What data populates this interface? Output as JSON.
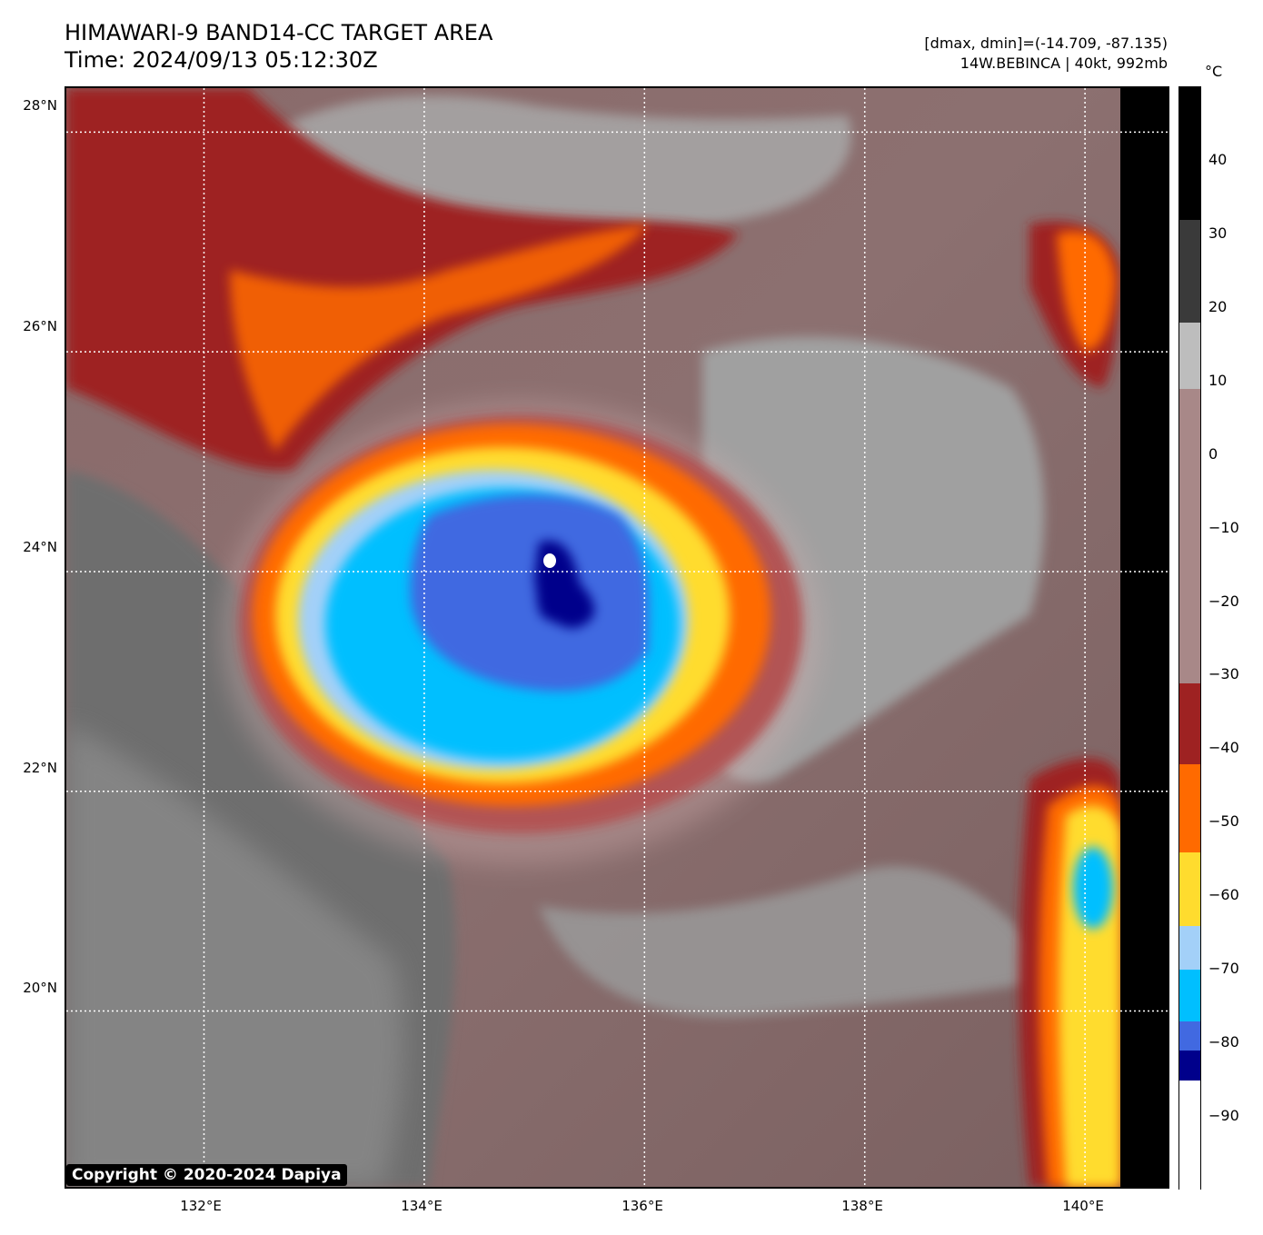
{
  "header": {
    "title_line1": "HIMAWARI-9 BAND14-CC TARGET AREA",
    "title_line2": "Time: 2024/09/13 05:12:30Z",
    "dmax_dmin": "[dmax, dmin]=(-14.709, -87.135)",
    "storm": "14W.BEBINCA | 40kt, 992mb"
  },
  "map": {
    "lat_labels": [
      "28°N",
      "26°N",
      "24°N",
      "22°N",
      "20°N"
    ],
    "lon_labels": [
      "132°E",
      "134°E",
      "136°E",
      "138°E",
      "140°E"
    ],
    "lat_values": [
      28,
      26,
      24,
      22,
      20
    ],
    "lon_values": [
      132,
      134,
      136,
      138,
      140
    ],
    "lat_range": [
      18.4,
      28.4
    ],
    "lon_range": [
      130.75,
      140.75
    ],
    "data_edge_lon": 140.25,
    "storm_center": {
      "lat": 23.7,
      "lon": 135.3
    },
    "grid": true
  },
  "colorbar": {
    "unit": "°C",
    "labels": [
      "40",
      "30",
      "20",
      "10",
      "0",
      "−10",
      "−20",
      "−30",
      "−40",
      "−50",
      "−60",
      "−70",
      "−80",
      "−90"
    ],
    "values": [
      40,
      30,
      20,
      10,
      0,
      -10,
      -20,
      -30,
      -40,
      -50,
      -60,
      -70,
      -80,
      -90
    ],
    "range": [
      -100,
      50
    ],
    "segments": [
      {
        "from": 50,
        "to": 32,
        "color": "#000000"
      },
      {
        "from": 32,
        "to": 18,
        "color": "#3a3a3a"
      },
      {
        "from": 18,
        "to": 9,
        "color": "#bdbdbd"
      },
      {
        "from": 9,
        "to": -31,
        "color": "#a88888"
      },
      {
        "from": -31,
        "to": -42,
        "color": "#9e2222"
      },
      {
        "from": -42,
        "to": -54,
        "color": "#ff6a00"
      },
      {
        "from": -54,
        "to": -64,
        "color": "#ffdc2e"
      },
      {
        "from": -64,
        "to": -70,
        "color": "#a3d0f8"
      },
      {
        "from": -70,
        "to": -77,
        "color": "#00bfff"
      },
      {
        "from": -77,
        "to": -81,
        "color": "#4169e1"
      },
      {
        "from": -81,
        "to": -85,
        "color": "#00008b"
      },
      {
        "from": -85,
        "to": -100,
        "color": "#ffffff"
      }
    ]
  },
  "copyright": "Copyright © 2020-2024 Dapiya"
}
